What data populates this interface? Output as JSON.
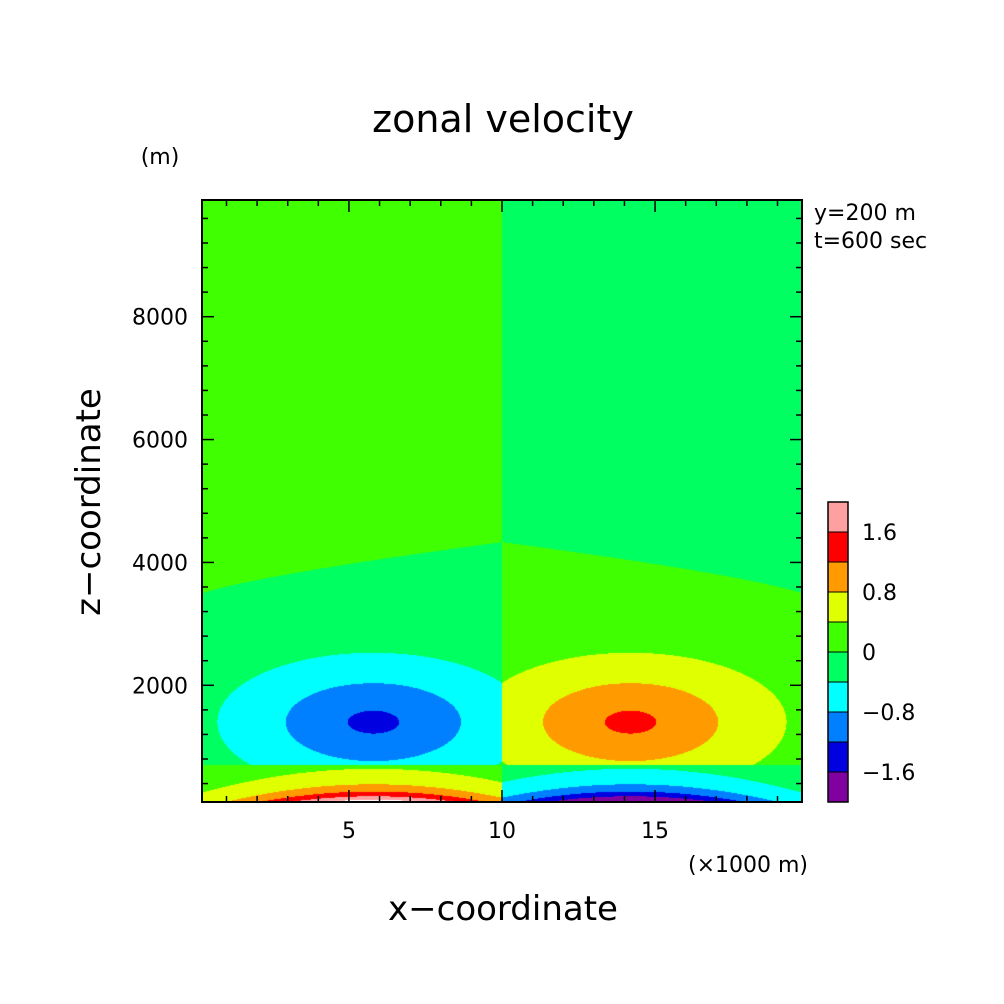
{
  "chart_data": {
    "type": "heatmap",
    "title": "zonal velocity",
    "xlabel": "x−coordinate",
    "ylabel": "z−coordinate",
    "x_unit": "(×1000 m)",
    "y_unit": "(m)",
    "info_lines": [
      "y=200 m",
      "t=600 sec"
    ],
    "xlim": [
      0.2,
      19.8
    ],
    "ylim": [
      100,
      9900
    ],
    "x_ticks": [
      5,
      10,
      15
    ],
    "x_tick_labels": [
      "5",
      "10",
      "15"
    ],
    "y_ticks": [
      2000,
      4000,
      6000,
      8000
    ],
    "y_tick_labels": [
      "2000",
      "4000",
      "6000",
      "8000"
    ],
    "x_minor_step": 1,
    "y_minor_step": 400,
    "colorbar": {
      "levels": [
        -2.0,
        -1.6,
        -1.2,
        -0.8,
        -0.4,
        0.0,
        0.4,
        0.8,
        1.2,
        1.6,
        2.0
      ],
      "colors": [
        "#8000a0",
        "#0000e0",
        "#0080ff",
        "#00ffff",
        "#00ff60",
        "#40ff00",
        "#e0ff00",
        "#ff9a00",
        "#ff0000",
        "#ffa0a0"
      ],
      "tick_labels": [
        {
          "value": -1.6,
          "label": "−1.6"
        },
        {
          "value": -0.8,
          "label": "−0.8"
        },
        {
          "value": 0,
          "label": "0"
        },
        {
          "value": 0.8,
          "label": "0.8"
        },
        {
          "value": 1.6,
          "label": "1.6"
        }
      ],
      "over_color": "#ffffff"
    },
    "field": {
      "description_of_structure": "antisymmetric about x=10 km",
      "upper_background_left": 0.2,
      "upper_background_right": -0.2,
      "mid_layer_left": -0.2,
      "mid_layer_right": 0.2,
      "cell_center_x": 5.8,
      "cell_center_z": 1400,
      "cell_peak": -1.0,
      "surface_jet_peak": 2.1
    }
  }
}
